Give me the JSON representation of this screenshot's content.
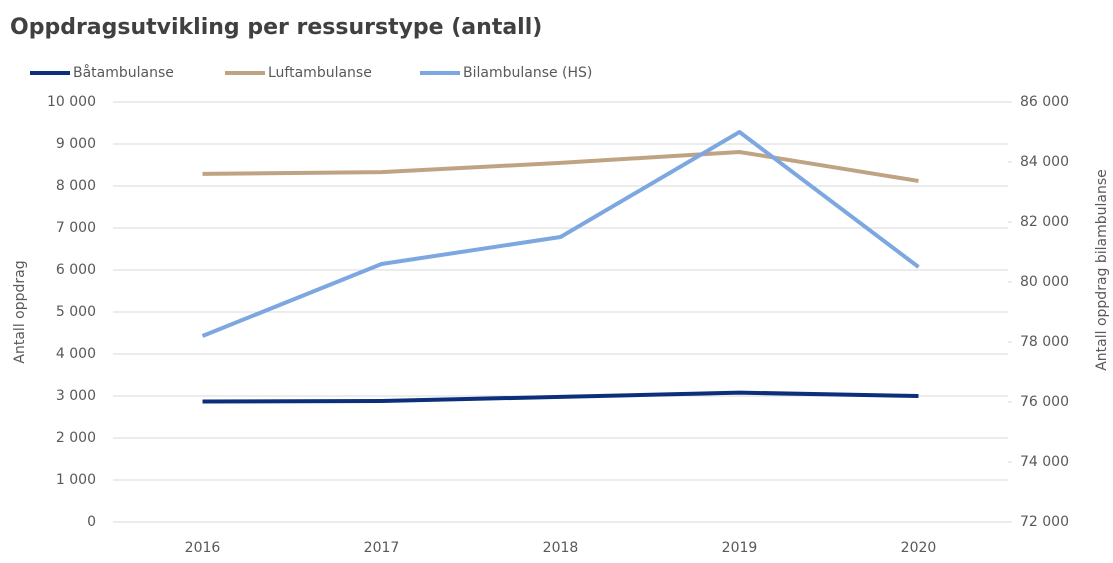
{
  "chart_data": {
    "type": "line",
    "title": "Oppdragsutvikling per ressurstype (antall)",
    "ylabel": "Antall oppdrag",
    "y2label": "Antall oppdrag bilambulanse",
    "categories": [
      "2016",
      "2017",
      "2018",
      "2019",
      "2020"
    ],
    "series": [
      {
        "name": "Båtambulanse",
        "color": "#0b2f7a",
        "values": [
          2870,
          2880,
          2980,
          3080,
          3000
        ]
      },
      {
        "name": "Luftambulanse",
        "color": "#bfa383",
        "values": [
          8290,
          8330,
          8550,
          8810,
          8120
        ]
      },
      {
        "name": "Bilambulanse (HS)",
        "color": "#7da7e0",
        "axis": "y2",
        "values": [
          78200,
          80600,
          81500,
          85000,
          80500
        ]
      }
    ],
    "ylim": [
      0,
      10000
    ],
    "yticks": [
      0,
      {
        "value": 1000,
        "label": "1 000"
      },
      {
        "value": 2000,
        "label": "2 000"
      },
      {
        "value": 3000,
        "label": "3 000"
      },
      {
        "value": 4000,
        "label": "4 000"
      },
      {
        "value": 5000,
        "label": "5 000"
      },
      {
        "value": 6000,
        "label": "6 000"
      },
      {
        "value": 7000,
        "label": "7 000"
      },
      {
        "value": 8000,
        "label": "8 000"
      },
      {
        "value": 9000,
        "label": "9 000"
      },
      {
        "value": 10000,
        "label": "10 000"
      }
    ],
    "y2lim": [
      72000,
      86000
    ],
    "y2ticks": [
      {
        "value": 72000,
        "label": "72 000"
      },
      {
        "value": 74000,
        "label": "74 000"
      },
      {
        "value": 76000,
        "label": "76 000"
      },
      {
        "value": 78000,
        "label": "78 000"
      },
      {
        "value": 80000,
        "label": "80 000"
      },
      {
        "value": 82000,
        "label": "82 000"
      },
      {
        "value": 84000,
        "label": "84 000"
      },
      {
        "value": 86000,
        "label": "86 000"
      }
    ],
    "grid": true,
    "legend": "top-left"
  }
}
